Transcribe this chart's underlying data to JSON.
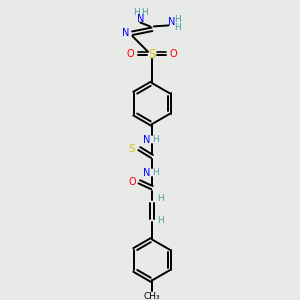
{
  "bg": "#e8eae8",
  "colors": {
    "C": "#000000",
    "N": "#0000ff",
    "O": "#ff0000",
    "S": "#cccc00",
    "H": "#4ca0a0"
  },
  "lw": 1.4
}
